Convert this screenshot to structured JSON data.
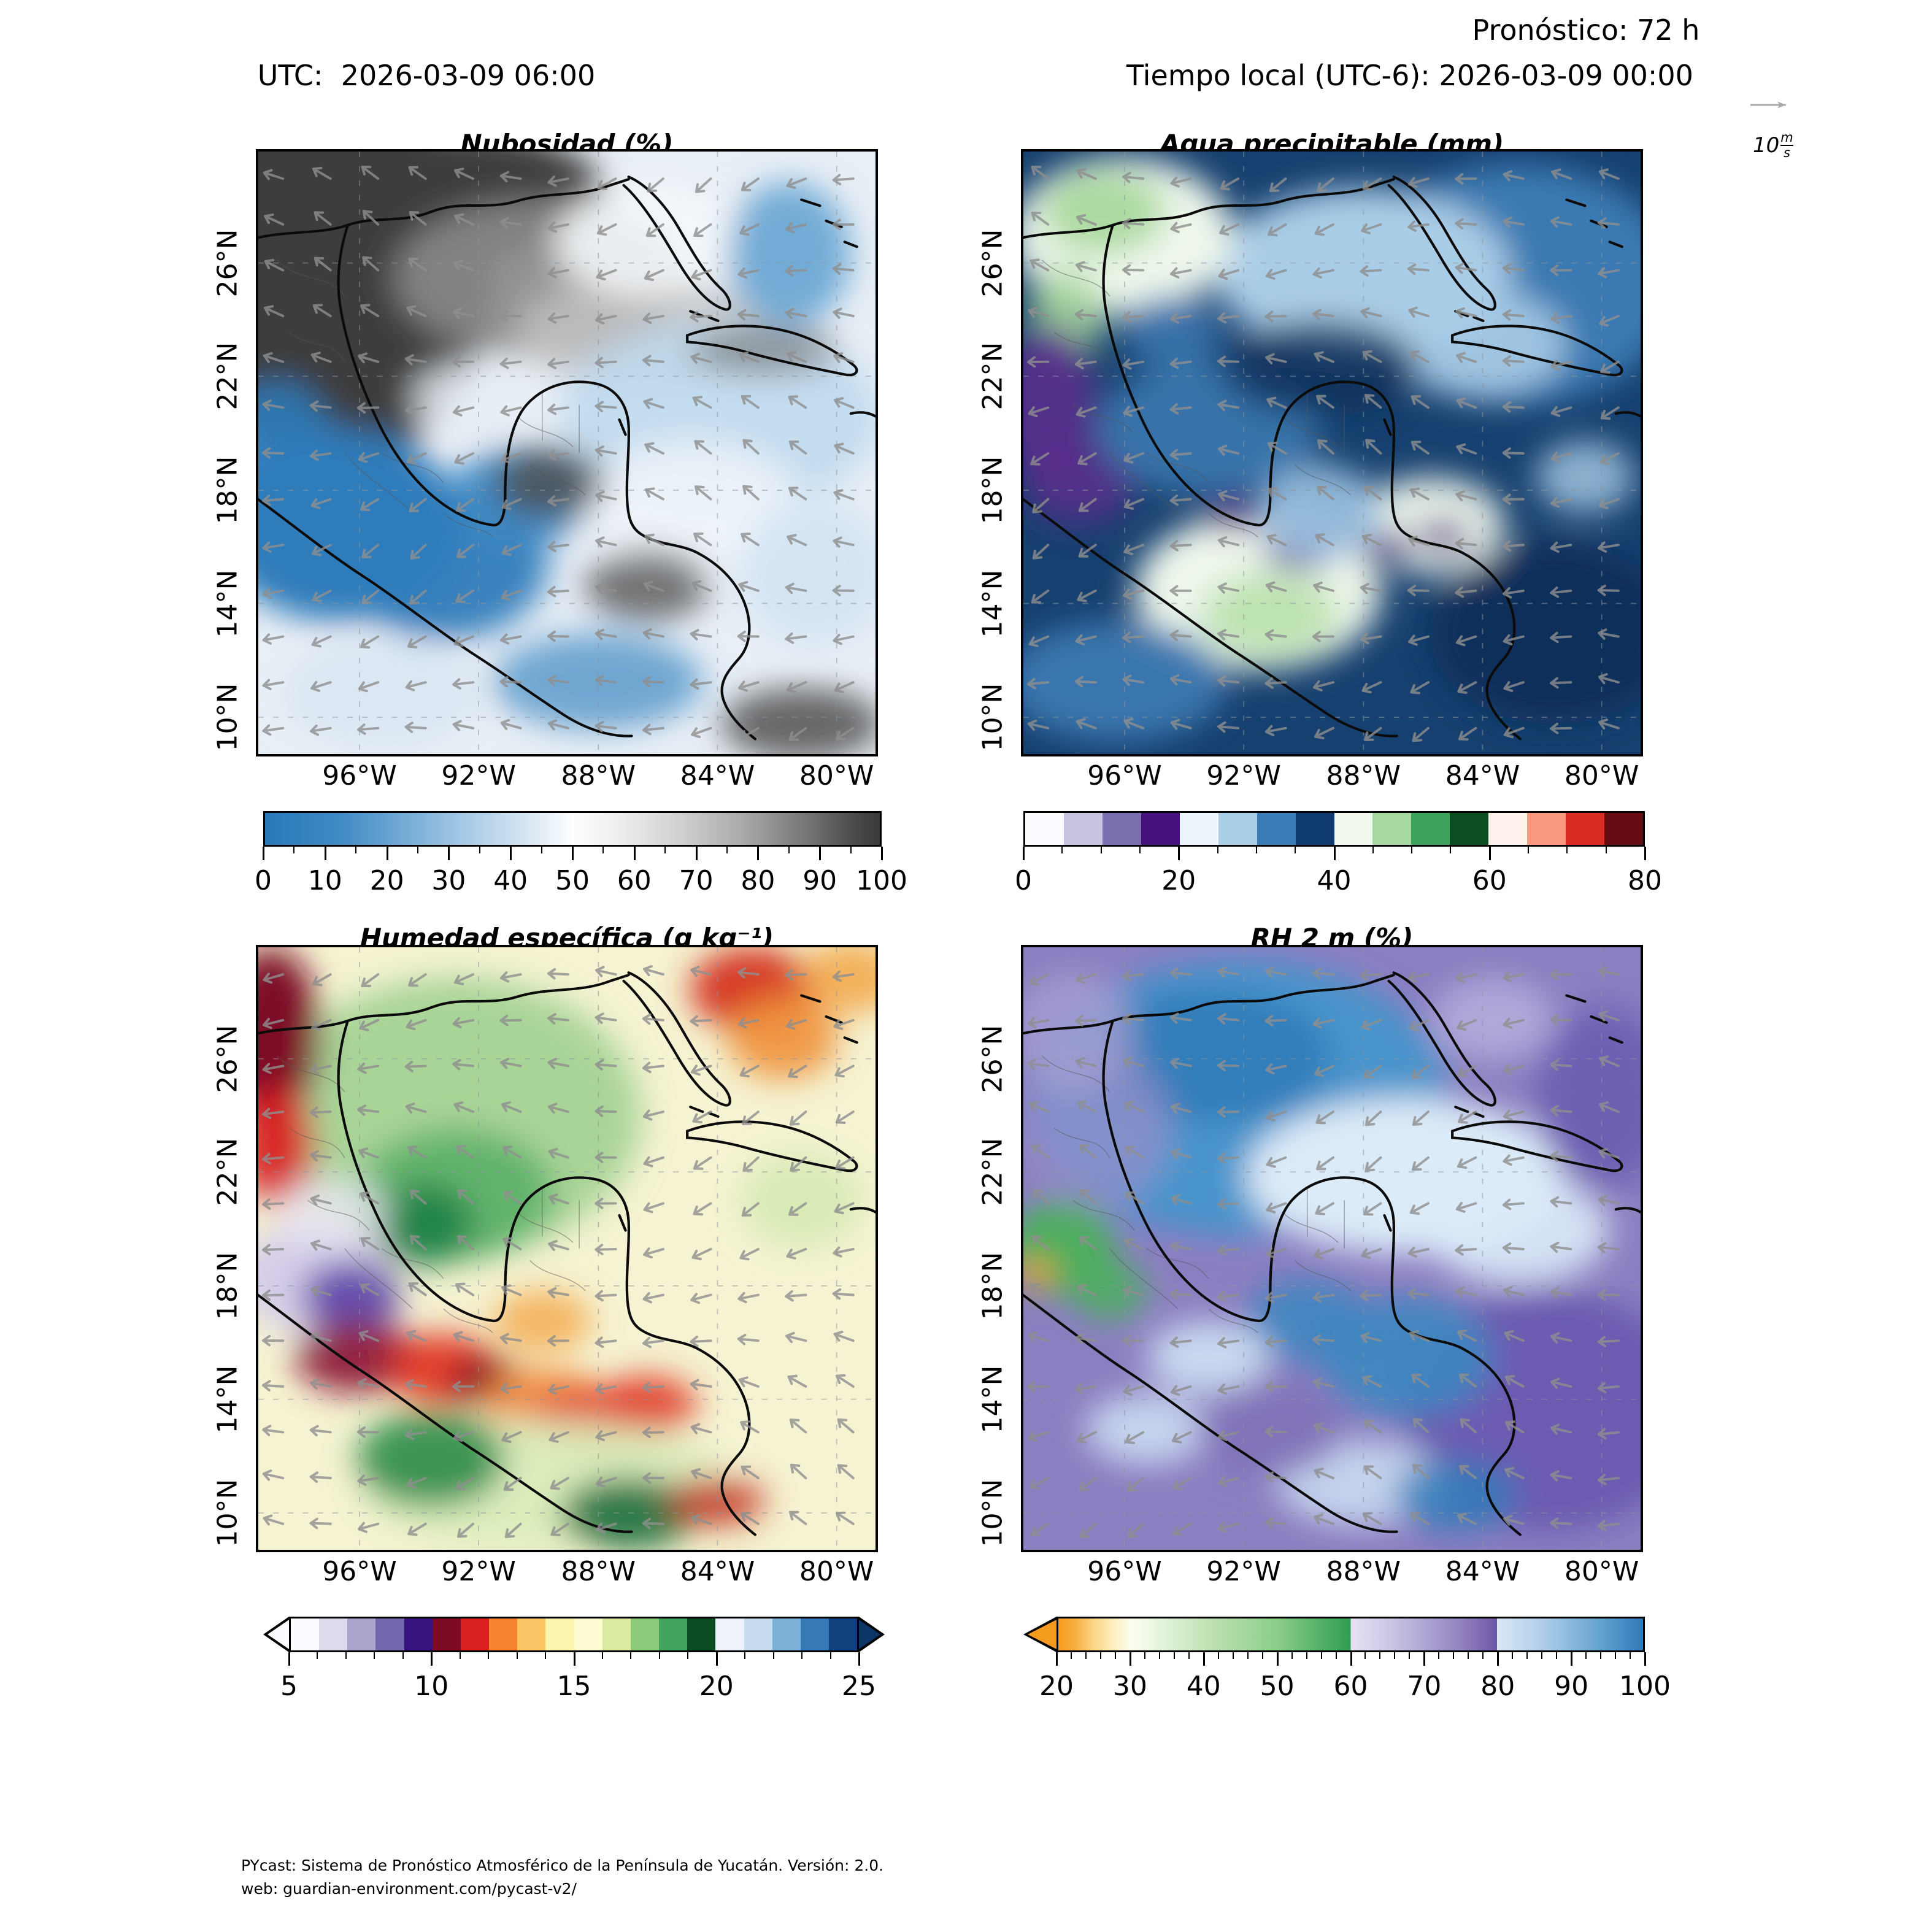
{
  "header": {
    "forecast_label": "Pronóstico: 72 h",
    "utc_label": "UTC:  2026-03-09 06:00",
    "local_label": "Tiempo local (UTC-6): 2026-03-09 00:00"
  },
  "wind_key": {
    "value": "10",
    "numerator": "m",
    "denominator": "s"
  },
  "axes": {
    "lat_ticks": [
      "26°N",
      "22°N",
      "18°N",
      "14°N",
      "10°N"
    ],
    "lon_ticks": [
      "96°W",
      "92°W",
      "88°W",
      "84°W",
      "80°W"
    ],
    "lat_fracs": [
      0.185,
      0.373,
      0.562,
      0.75,
      0.939
    ],
    "lon_fracs": [
      0.164,
      0.357,
      0.551,
      0.744,
      0.937
    ]
  },
  "panels": [
    {
      "id": "nubosidad",
      "title": "Nubosidad (%)",
      "base_color": "#e9eff6",
      "colorbar": {
        "ticks": [
          "0",
          "10",
          "20",
          "30",
          "40",
          "50",
          "60",
          "70",
          "80",
          "90",
          "100"
        ],
        "minor": 20,
        "stops": [
          [
            0,
            "#2878b8"
          ],
          [
            12,
            "#3f8ac4"
          ],
          [
            22,
            "#6fa9d4"
          ],
          [
            32,
            "#a4c9e5"
          ],
          [
            42,
            "#d3e4f2"
          ],
          [
            50,
            "#fefefe"
          ],
          [
            58,
            "#ececec"
          ],
          [
            68,
            "#cfcfcf"
          ],
          [
            78,
            "#a8a8a8"
          ],
          [
            88,
            "#767676"
          ],
          [
            96,
            "#4a4a4a"
          ],
          [
            100,
            "#3a3a3a"
          ]
        ]
      }
    },
    {
      "id": "agua-precipitable",
      "title": "Agua precipitable (mm)",
      "base_color": "#16406f",
      "colorbar": {
        "ticks": [
          "0",
          "20",
          "40",
          "60",
          "80"
        ],
        "minor": 16,
        "colors": [
          "#fcfbff",
          "#c9c5e1",
          "#7b6fb0",
          "#46127e",
          "#eef4fb",
          "#aacfe8",
          "#3b7db8",
          "#0e3a6e",
          "#f0f8ec",
          "#a6d99e",
          "#3da35c",
          "#0b4f21",
          "#fdf3ec",
          "#f89b80",
          "#d92b22",
          "#670b12"
        ]
      }
    },
    {
      "id": "humedad-especifica",
      "title": "Humedad específica (g kg⁻¹)",
      "base_color": "#f5f3d2",
      "colorbar": {
        "ticks": [
          "5",
          "10",
          "15",
          "20",
          "25"
        ],
        "minor": 20,
        "colors": [
          "#fcfbff",
          "#dcdaeb",
          "#aaa5cd",
          "#7468ae",
          "#38127e",
          "#7d0b25",
          "#da2020",
          "#f6812e",
          "#fbc766",
          "#fdf4b0",
          "#fdfbd2",
          "#d9eca1",
          "#8cca7c",
          "#42a35c",
          "#0b4c24",
          "#eef3fb",
          "#c6dbee",
          "#7eb1d8",
          "#3579b5",
          "#11427e"
        ],
        "extend_left": "#fcfbff",
        "extend_right": "#0d3666"
      }
    },
    {
      "id": "rh-2m",
      "title": "RH 2 m (%)",
      "base_color": "#8b7ec1",
      "colorbar": {
        "ticks": [
          "20",
          "30",
          "40",
          "50",
          "60",
          "70",
          "80",
          "90",
          "100"
        ],
        "minor": 40,
        "stops": [
          [
            0,
            "#f59b1e"
          ],
          [
            3,
            "#f7b045"
          ],
          [
            6,
            "#fbd483"
          ],
          [
            9,
            "#fdecb9"
          ],
          [
            12.5,
            "#fcfdf0"
          ],
          [
            17,
            "#e7f5e0"
          ],
          [
            25,
            "#c2e4b6"
          ],
          [
            37.5,
            "#8bcd89"
          ],
          [
            45,
            "#53b066"
          ],
          [
            50,
            "#2f9e51"
          ],
          [
            50,
            "#e6e3f2"
          ],
          [
            56,
            "#cfc9e6"
          ],
          [
            62.5,
            "#afa6d4"
          ],
          [
            69,
            "#9181bf"
          ],
          [
            75,
            "#6f57a7"
          ],
          [
            75,
            "#d9e6f5"
          ],
          [
            82,
            "#b4d1ec"
          ],
          [
            87.5,
            "#8cbade"
          ],
          [
            94,
            "#5a9bcb"
          ],
          [
            100,
            "#2e79b8"
          ]
        ],
        "extend_left": "#f59b1e"
      }
    }
  ],
  "footer": {
    "line1": "PYcast: Sistema de Pronóstico Atmosférico de la Península de Yucatán. Versión: 2.0.",
    "line2": "web: guardian-environment.com/pycast-v2/"
  },
  "chart_data": [
    {
      "type": "heatmap",
      "title": "Nubosidad (%)",
      "x_ticks": [
        "96°W",
        "92°W",
        "88°W",
        "84°W",
        "80°W"
      ],
      "y_ticks": [
        "26°N",
        "22°N",
        "18°N",
        "14°N",
        "10°N"
      ],
      "colorbar": {
        "min": 0,
        "max": 100,
        "ticks": [
          0,
          10,
          20,
          30,
          40,
          50,
          60,
          70,
          80,
          90,
          100
        ],
        "style": "continuous, blue (0) through white (≈50) to dark gray (100)",
        "extend": "none"
      },
      "field_summary": "Cloud cover 90–100% (dark gray) over Texas and northeastern Mexico; 50–80% gray band across the north-central Gulf of Mexico; ≈0–10% (saturated blue) over central-southern Mexico, Bay of Campeche and northern Yucatán; 20–50% pale blue/white over the NW Caribbean and east of Yucatán; scattered 80–100% cells over Honduras, Nicaragua and near Cuba."
    },
    {
      "type": "heatmap",
      "title": "Agua precipitable (mm)",
      "x_ticks": [
        "96°W",
        "92°W",
        "88°W",
        "84°W",
        "80°W"
      ],
      "y_ticks": [
        "26°N",
        "22°N",
        "18°N",
        "14°N",
        "10°N"
      ],
      "colorbar": {
        "min": 0,
        "max": 80,
        "ticks": [
          0,
          20,
          40,
          60,
          80
        ],
        "segment_step": 5,
        "style": "16 discrete steps: whites/purples (0–20), blues (20–40), greens (40–60), pinks/reds (60–80)",
        "extend": "none"
      },
      "field_summary": "Mostly 30–40 mm (dark navy) over the Gulf and Caribbean with 25–30 mm (mid blue) bands; 20–25 mm light-blue core in the central Gulf; 0–10 mm whites and 40–50 mm pale greens over Texas/NE Mexico land; 10–20 mm purple pockets over the Mexican highlands and Chiapas/Guatemala; white/purple dry spots over Honduras interior."
    },
    {
      "type": "heatmap",
      "title": "Humedad específica (g kg⁻¹)",
      "x_ticks": [
        "96°W",
        "92°W",
        "88°W",
        "84°W",
        "80°W"
      ],
      "y_ticks": [
        "26°N",
        "22°N",
        "18°N",
        "14°N",
        "10°N"
      ],
      "colorbar": {
        "min": 5,
        "max": 25,
        "ticks": [
          5,
          10,
          15,
          20,
          25
        ],
        "segment_step": 1,
        "style": "20 discrete steps: whites/purples (5–10), maroon/red/orange/yellow (10–15), yellow-greens to dark green (15–20), light to dark blue (20–25)",
        "extend": "both"
      },
      "field_summary": "15–17 g/kg pale yellow over open Caribbean/Atlantic; 16–18 g/kg greens across the Gulf of Mexico with 18–19 g/kg darker green core; 10–12 g/kg maroon/red along NE Mexico coast and Florida; 5–9 g/kg white/purple minimum over the central Mexican highlands; 11–13 g/kg red/orange band along the Pacific slope of Chiapas–Honduras–Nicaragua; 18–20 g/kg dark greens over the eastern Pacific south of Mexico."
    },
    {
      "type": "heatmap",
      "title": "RH 2 m (%)",
      "x_ticks": [
        "96°W",
        "92°W",
        "88°W",
        "84°W",
        "80°W"
      ],
      "y_ticks": [
        "26°N",
        "22°N",
        "18°N",
        "14°N",
        "10°N"
      ],
      "colorbar": {
        "min": 20,
        "max": 100,
        "ticks": [
          20,
          30,
          40,
          50,
          60,
          70,
          80,
          90,
          100
        ],
        "segment_step": 2,
        "style": "stepped gradient: orange→white (20–30), white→green (30–60), lavender→purple (60–80), pale blue→blue (80–100)",
        "extend": "min"
      },
      "field_summary": "80–90% blues over the Gulf of Mexico with a 95–100% very pale band from the central Gulf toward Cuba; 60–80% purples over the Caribbean, eastern Pacific and most land; 30–50% greens with a small 20–25% orange spot over the western Mexican highlands; 85–95% light-blue pockets along Central America."
    }
  ],
  "overlay": {
    "wind_reference": "10 m/s",
    "wind_arrow_color": "#8f8f8f",
    "flow_description": "Gray quiver arrows, predominantly easterly over the Gulf and Caribbean"
  }
}
